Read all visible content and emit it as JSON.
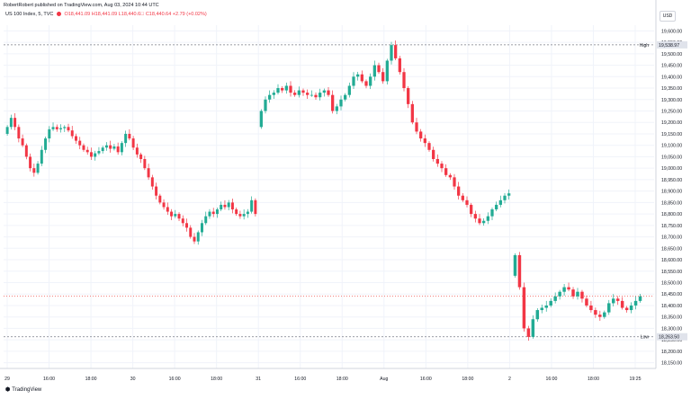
{
  "header": {
    "publisher": "RobertRobert published on TradingView.com, Aug 03, 2024 10:44 UTC",
    "symbol": "US 100 Index, 5, TVC",
    "ohlc": "O18,441.09 H18,441.09 L18,440.6\u0000 C18,440.64 +2.79 (+0.02%)"
  },
  "currency": "USD",
  "logo": "TradingView",
  "colors": {
    "up": "#22ab94",
    "down": "#f23645",
    "grid": "#f0f3fa",
    "line": "#ef5350"
  },
  "chart_data": {
    "type": "candlestick",
    "y_axis": {
      "ticks": [
        "19,600.00",
        "19,550.00",
        "19,500.00",
        "19,450.00",
        "19,400.00",
        "19,350.00",
        "19,300.00",
        "19,250.00",
        "19,200.00",
        "19,150.00",
        "19,100.00",
        "19,050.00",
        "19,000.00",
        "18,950.00",
        "18,900.00",
        "18,850.00",
        "18,800.00",
        "18,750.00",
        "18,700.00",
        "18,650.00",
        "18,600.00",
        "18,550.00",
        "18,500.00",
        "18,450.00",
        "18,400.00",
        "18,350.00",
        "18,300.00",
        "18,250.00",
        "18,200.00",
        "18,150.00"
      ],
      "ylim": [
        18125,
        19625
      ]
    },
    "x_axis": {
      "ticks": [
        "29",
        "16:00",
        "18:00",
        "30",
        "16:00",
        "18:00",
        "31",
        "16:00",
        "18:00",
        "Aug",
        "16:00",
        "18:00",
        "2",
        "16:00",
        "18:00",
        "19:25"
      ]
    },
    "reference_lines": [
      {
        "label": "High",
        "value_text": "19,538.97",
        "value": 19538.97
      },
      {
        "label": "Low",
        "value_text": "18,263.50",
        "value": 18263.5
      }
    ],
    "last_price_value": 18440.64,
    "sessions": [
      {
        "name": "29",
        "path": [
          19150,
          19180,
          19220,
          19180,
          19130,
          19100,
          19050,
          19000,
          18980,
          19020,
          19080,
          19130,
          19170,
          19180,
          19170,
          19175,
          19180,
          19165,
          19140,
          19120,
          19100,
          19080,
          19070,
          19050,
          19065,
          19075,
          19090,
          19100,
          19085,
          19095,
          19070,
          19110,
          19150,
          19130,
          19090,
          19060,
          19040,
          19000,
          18960,
          18920,
          18880,
          18850,
          18830,
          18810,
          18790,
          18800,
          18780,
          18760,
          18740,
          18700,
          18680,
          18720,
          18760,
          18790,
          18810,
          18800,
          18820,
          18840,
          18830,
          18850,
          18820,
          18800,
          18790,
          18800,
          18810,
          18860,
          18800
        ]
      },
      {
        "name": "31",
        "path": [
          19180,
          19250,
          19300,
          19320,
          19330,
          19350,
          19340,
          19360,
          19330,
          19320,
          19340,
          19330,
          19320,
          19320,
          19310,
          19330,
          19340,
          19320,
          19250,
          19270,
          19300,
          19320,
          19360,
          19400,
          19410,
          19380,
          19360,
          19400,
          19450,
          19420,
          19380,
          19470,
          19538,
          19480,
          19420,
          19350,
          19280,
          19200,
          19160,
          19130,
          19110,
          19080,
          19040,
          19020,
          19000,
          18970,
          18960,
          18920,
          18880,
          18860,
          18840,
          18800,
          18780,
          18760,
          18770,
          18790,
          18820,
          18840,
          18860,
          18880,
          18890
        ]
      },
      {
        "name": "2",
        "path": [
          18530,
          18620,
          18480,
          18300,
          18263,
          18340,
          18380,
          18390,
          18400,
          18420,
          18440,
          18460,
          18480,
          18470,
          18440,
          18460,
          18430,
          18400,
          18380,
          18360,
          18350,
          18370,
          18410,
          18430,
          18420,
          18390,
          18380,
          18400,
          18420,
          18440
        ]
      }
    ]
  }
}
